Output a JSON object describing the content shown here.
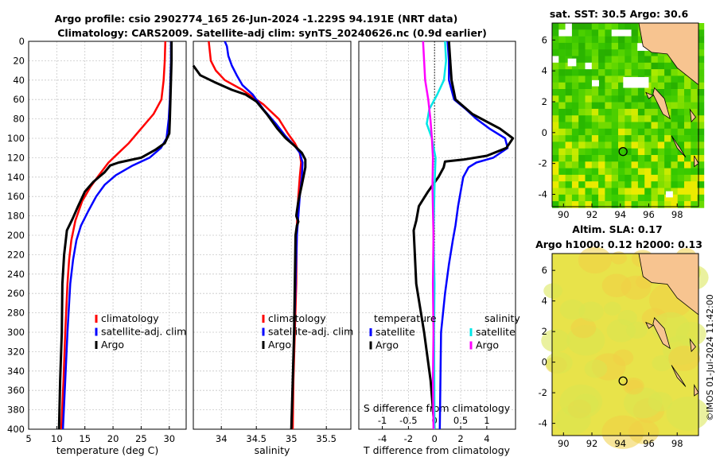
{
  "title": {
    "line1": "Argo profile: csio 2902774_165 26-Jun-2024 -1.229S 94.191E (NRT data)",
    "line2": "Climatology: CARS2009. Satellite-adj clim: synTS_20240626.nc (0.9d earlier)"
  },
  "credit": "©IMOS 01-Jul-2024 11:42:00",
  "colors": {
    "climatology": "#ff0000",
    "satellite": "#0000ff",
    "argo": "#000000",
    "sat_salinity": "#00e6e6",
    "argo_salinity": "#ff00ff",
    "land": "#f7c490",
    "grid": "#c8c8c8"
  },
  "chart_data": [
    {
      "id": "temperature",
      "type": "line",
      "xlabel": "temperature (deg C)",
      "ylabel": "",
      "xlim": [
        5,
        33
      ],
      "ylim": [
        400,
        0
      ],
      "xticks": [
        5,
        10,
        15,
        20,
        25,
        30
      ],
      "yticks": [
        0,
        20,
        40,
        60,
        80,
        100,
        120,
        140,
        160,
        180,
        200,
        220,
        240,
        260,
        280,
        300,
        320,
        340,
        360,
        380,
        400
      ],
      "legend": [
        "climatology",
        "satellite-adj. clim",
        "Argo"
      ],
      "series": [
        {
          "name": "climatology",
          "color": "#ff0000",
          "width": 2.5,
          "points": [
            [
              29.3,
              0
            ],
            [
              29.2,
              20
            ],
            [
              29.0,
              40
            ],
            [
              28.6,
              60
            ],
            [
              27.2,
              75
            ],
            [
              25.0,
              90
            ],
            [
              22.8,
              105
            ],
            [
              21.0,
              115
            ],
            [
              19.2,
              125
            ],
            [
              17.5,
              138
            ],
            [
              16.0,
              150
            ],
            [
              14.5,
              165
            ],
            [
              13.3,
              185
            ],
            [
              12.6,
              205
            ],
            [
              12.2,
              225
            ],
            [
              11.9,
              250
            ],
            [
              11.5,
              300
            ],
            [
              11.2,
              350
            ],
            [
              10.8,
              400
            ]
          ]
        },
        {
          "name": "satellite-adj. clim",
          "color": "#0000ff",
          "width": 2.5,
          "points": [
            [
              30.3,
              0
            ],
            [
              30.3,
              20
            ],
            [
              30.2,
              40
            ],
            [
              30.1,
              60
            ],
            [
              29.9,
              80
            ],
            [
              29.5,
              100
            ],
            [
              28.5,
              110
            ],
            [
              26.5,
              120
            ],
            [
              23.5,
              128
            ],
            [
              20.5,
              138
            ],
            [
              18.5,
              148
            ],
            [
              17.0,
              160
            ],
            [
              15.6,
              175
            ],
            [
              14.3,
              190
            ],
            [
              13.5,
              205
            ],
            [
              12.9,
              225
            ],
            [
              12.4,
              250
            ],
            [
              11.9,
              300
            ],
            [
              11.5,
              350
            ],
            [
              11.1,
              400
            ]
          ]
        },
        {
          "name": "Argo",
          "color": "#000000",
          "width": 3,
          "points": [
            [
              30.4,
              0
            ],
            [
              30.4,
              20
            ],
            [
              30.3,
              40
            ],
            [
              30.2,
              60
            ],
            [
              30.1,
              80
            ],
            [
              30.0,
              95
            ],
            [
              29.2,
              105
            ],
            [
              27.5,
              112
            ],
            [
              25.0,
              120
            ],
            [
              21.0,
              125
            ],
            [
              19.5,
              128
            ],
            [
              18.5,
              135
            ],
            [
              16.5,
              145
            ],
            [
              15.0,
              155
            ],
            [
              13.8,
              170
            ],
            [
              12.8,
              183
            ],
            [
              11.8,
              195
            ],
            [
              11.3,
              220
            ],
            [
              11.0,
              250
            ],
            [
              10.9,
              300
            ],
            [
              10.6,
              350
            ],
            [
              10.4,
              400
            ]
          ]
        }
      ]
    },
    {
      "id": "salinity",
      "type": "line",
      "xlabel": "salinity",
      "xlim": [
        33.6,
        35.85
      ],
      "ylim": [
        400,
        0
      ],
      "xticks": [
        34,
        34.5,
        35,
        35.5
      ],
      "legend": [
        "climatology",
        "satellite-adj. clim",
        "Argo"
      ],
      "series": [
        {
          "name": "climatology",
          "color": "#ff0000",
          "width": 2.5,
          "points": [
            [
              33.82,
              0
            ],
            [
              33.85,
              20
            ],
            [
              33.92,
              30
            ],
            [
              34.05,
              40
            ],
            [
              34.3,
              50
            ],
            [
              34.6,
              65
            ],
            [
              34.82,
              80
            ],
            [
              34.95,
              95
            ],
            [
              35.05,
              105
            ],
            [
              35.12,
              115
            ],
            [
              35.14,
              125
            ],
            [
              35.12,
              140
            ],
            [
              35.1,
              160
            ],
            [
              35.08,
              190
            ],
            [
              35.07,
              250
            ],
            [
              35.05,
              300
            ],
            [
              35.03,
              350
            ],
            [
              35.02,
              400
            ]
          ]
        },
        {
          "name": "satellite-adj. clim",
          "color": "#0000ff",
          "width": 2.5,
          "points": [
            [
              34.05,
              0
            ],
            [
              34.08,
              5
            ],
            [
              34.1,
              15
            ],
            [
              34.15,
              25
            ],
            [
              34.22,
              35
            ],
            [
              34.3,
              45
            ],
            [
              34.45,
              55
            ],
            [
              34.6,
              70
            ],
            [
              34.78,
              85
            ],
            [
              34.92,
              98
            ],
            [
              35.05,
              108
            ],
            [
              35.12,
              115
            ],
            [
              35.16,
              125
            ],
            [
              35.15,
              140
            ],
            [
              35.12,
              160
            ],
            [
              35.1,
              180
            ],
            [
              35.08,
              200
            ],
            [
              35.06,
              250
            ],
            [
              35.04,
              300
            ],
            [
              35.02,
              350
            ],
            [
              35.0,
              400
            ]
          ]
        },
        {
          "name": "Argo",
          "color": "#000000",
          "width": 3,
          "points": [
            [
              33.6,
              25
            ],
            [
              33.7,
              35
            ],
            [
              33.9,
              42
            ],
            [
              34.15,
              50
            ],
            [
              34.35,
              55
            ],
            [
              34.5,
              62
            ],
            [
              34.65,
              75
            ],
            [
              34.8,
              90
            ],
            [
              34.92,
              100
            ],
            [
              35.05,
              108
            ],
            [
              35.15,
              115
            ],
            [
              35.2,
              122
            ],
            [
              35.2,
              130
            ],
            [
              35.15,
              148
            ],
            [
              35.1,
              165
            ],
            [
              35.07,
              180
            ],
            [
              35.1,
              186
            ],
            [
              35.08,
              190
            ],
            [
              35.06,
              200
            ],
            [
              35.05,
              250
            ],
            [
              35.04,
              300
            ],
            [
              35.02,
              350
            ],
            [
              35.0,
              400
            ]
          ]
        }
      ]
    },
    {
      "id": "difference",
      "type": "line",
      "xlabel": "T difference from climatology",
      "xlabel_top": "S difference from climatology",
      "xlim_T": [
        -5.8,
        6.2
      ],
      "xlim_S": [
        -1.45,
        1.55
      ],
      "ylim": [
        400,
        0
      ],
      "xticks_T": [
        -4,
        -2,
        0,
        2,
        4
      ],
      "xticks_S": [
        -1,
        -0.5,
        0,
        0.5,
        1
      ],
      "xticks_S_labels": [
        "-1",
        "-0.5",
        "0",
        "0.5",
        "1"
      ],
      "legend_temperature_title": "temperature",
      "legend_salinity_title": "salinity",
      "legend_temperature": [
        "satellite",
        "Argo"
      ],
      "legend_salinity": [
        "satellite",
        "Argo"
      ],
      "series": [
        {
          "name": "T satellite",
          "axis": "T",
          "color": "#0000ff",
          "width": 2.5,
          "points": [
            [
              1.0,
              0
            ],
            [
              1.1,
              20
            ],
            [
              1.1,
              40
            ],
            [
              1.5,
              60
            ],
            [
              2.4,
              70
            ],
            [
              3.2,
              80
            ],
            [
              4.2,
              90
            ],
            [
              5.4,
              100
            ],
            [
              5.6,
              110
            ],
            [
              4.5,
              120
            ],
            [
              3.2,
              125
            ],
            [
              2.6,
              130
            ],
            [
              2.2,
              140
            ],
            [
              2.0,
              155
            ],
            [
              1.8,
              170
            ],
            [
              1.6,
              190
            ],
            [
              1.4,
              205
            ],
            [
              1.1,
              230
            ],
            [
              0.8,
              260
            ],
            [
              0.5,
              300
            ],
            [
              0.4,
              400
            ]
          ]
        },
        {
          "name": "T Argo",
          "axis": "T",
          "color": "#000000",
          "width": 3,
          "points": [
            [
              1.1,
              0
            ],
            [
              1.2,
              20
            ],
            [
              1.3,
              40
            ],
            [
              1.6,
              60
            ],
            [
              2.9,
              75
            ],
            [
              5.0,
              90
            ],
            [
              6.0,
              100
            ],
            [
              5.5,
              110
            ],
            [
              4.0,
              118
            ],
            [
              2.2,
              122
            ],
            [
              0.8,
              124
            ],
            [
              0.7,
              130
            ],
            [
              0.3,
              140
            ],
            [
              -0.5,
              155
            ],
            [
              -1.2,
              170
            ],
            [
              -1.4,
              185
            ],
            [
              -1.6,
              195
            ],
            [
              -1.4,
              250
            ],
            [
              -0.8,
              300
            ],
            [
              -0.3,
              350
            ],
            [
              0.0,
              400
            ]
          ]
        },
        {
          "name": "S satellite",
          "axis": "S",
          "color": "#00e6e6",
          "width": 2.5,
          "points": [
            [
              0.2,
              0
            ],
            [
              0.22,
              20
            ],
            [
              0.18,
              40
            ],
            [
              0.05,
              55
            ],
            [
              -0.1,
              70
            ],
            [
              -0.15,
              85
            ],
            [
              -0.05,
              100
            ],
            [
              0.02,
              120
            ],
            [
              0.0,
              150
            ],
            [
              -0.02,
              200
            ],
            [
              0.0,
              250
            ],
            [
              -0.01,
              300
            ],
            [
              0.0,
              400
            ]
          ]
        },
        {
          "name": "S Argo",
          "axis": "S",
          "color": "#ff00ff",
          "width": 2.5,
          "points": [
            [
              -0.22,
              0
            ],
            [
              -0.2,
              20
            ],
            [
              -0.18,
              40
            ],
            [
              -0.12,
              60
            ],
            [
              -0.08,
              80
            ],
            [
              -0.05,
              100
            ],
            [
              -0.03,
              120
            ],
            [
              -0.04,
              150
            ],
            [
              -0.02,
              200
            ],
            [
              -0.03,
              250
            ],
            [
              -0.02,
              300
            ],
            [
              -0.03,
              350
            ],
            [
              -0.02,
              400
            ]
          ]
        }
      ]
    },
    {
      "id": "sst_map",
      "type": "heatmap",
      "title": "sat. SST: 30.5 Argo: 30.6",
      "xticks": [
        90,
        92,
        94,
        96,
        98
      ],
      "yticks": [
        -4,
        -2,
        0,
        2,
        4,
        6
      ],
      "xlim": [
        89.2,
        99.5
      ],
      "ylim": [
        -4.8,
        7.1
      ],
      "marker": {
        "lon": 94.191,
        "lat": -1.229
      }
    },
    {
      "id": "sla_map",
      "type": "heatmap",
      "title_line1": "Altim. SLA: 0.17",
      "title_line2": "Argo h1000: 0.12 h2000: 0.13",
      "xticks": [
        90,
        92,
        94,
        96,
        98
      ],
      "yticks": [
        -4,
        -2,
        0,
        2,
        4,
        6
      ],
      "xlim": [
        89.2,
        99.5
      ],
      "ylim": [
        -4.8,
        7.1
      ],
      "marker": {
        "lon": 94.191,
        "lat": -1.229
      }
    }
  ]
}
